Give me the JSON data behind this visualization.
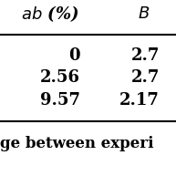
{
  "col1_header": "ab (%)",
  "col2_header": "B",
  "rows": [
    [
      "0",
      "2.7"
    ],
    [
      "2.56",
      "2.7"
    ],
    [
      "9.57",
      "2.17"
    ]
  ],
  "footer_text": "ge between experi",
  "bg_color": "#ffffff",
  "text_color": "#000000",
  "font_size": 13,
  "header_font_size": 13
}
